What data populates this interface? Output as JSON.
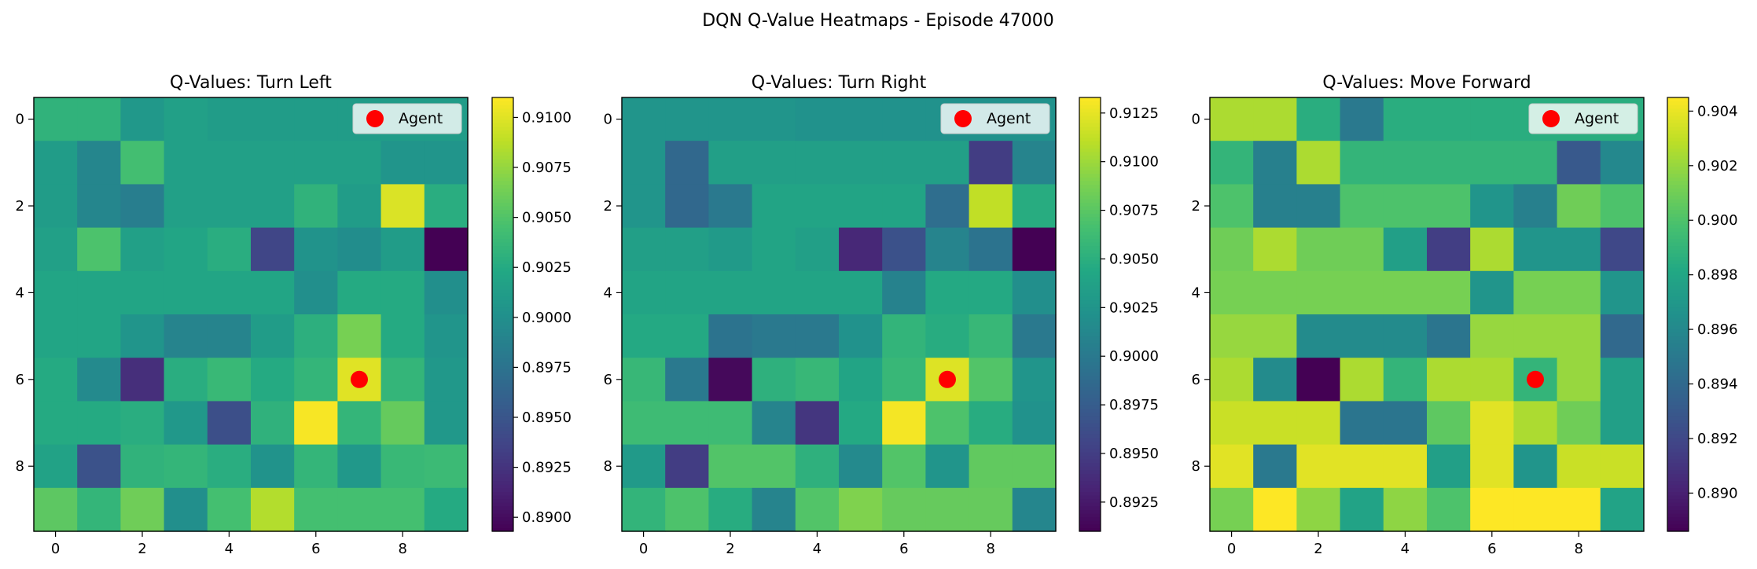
{
  "figure": {
    "suptitle": "DQN Q-Value Heatmaps - Episode 47000"
  },
  "colors": {
    "colormap": "viridis",
    "agent_marker": "#ff0000",
    "legend_bg": "#ffffff"
  },
  "chart_data": [
    {
      "type": "heatmap",
      "title": "Q-Values: Turn Left",
      "x": [
        0,
        1,
        2,
        3,
        4,
        5,
        6,
        7,
        8,
        9
      ],
      "y": [
        0,
        1,
        2,
        3,
        4,
        5,
        6,
        7,
        8,
        9
      ],
      "x_tick_labels": [
        "0",
        "2",
        "4",
        "6",
        "8"
      ],
      "y_tick_labels": [
        "0",
        "2",
        "4",
        "6",
        "8"
      ],
      "values": [
        [
          0.9033,
          0.9033,
          0.9008,
          0.9016,
          0.9012,
          0.9012,
          0.9012,
          0.9012,
          0.9012,
          0.9012
        ],
        [
          0.9012,
          0.8992,
          0.9044,
          0.9016,
          0.9016,
          0.9016,
          0.9016,
          0.9016,
          0.9005,
          0.9005
        ],
        [
          0.9012,
          0.8992,
          0.8985,
          0.9016,
          0.9016,
          0.9016,
          0.9033,
          0.9012,
          0.9098,
          0.9028
        ],
        [
          0.9016,
          0.9048,
          0.9016,
          0.902,
          0.9028,
          0.8938,
          0.9003,
          0.8998,
          0.9012,
          0.8892
        ],
        [
          0.902,
          0.902,
          0.902,
          0.902,
          0.902,
          0.902,
          0.9,
          0.9025,
          0.9025,
          0.9
        ],
        [
          0.902,
          0.902,
          0.9005,
          0.899,
          0.899,
          0.9012,
          0.903,
          0.9065,
          0.9025,
          0.9005
        ],
        [
          0.9025,
          0.8995,
          0.8922,
          0.9028,
          0.9038,
          0.9025,
          0.9035,
          0.91,
          0.9035,
          0.9008
        ],
        [
          0.9025,
          0.9025,
          0.9028,
          0.9008,
          0.8945,
          0.9032,
          0.9108,
          0.9035,
          0.9058,
          0.9008
        ],
        [
          0.9018,
          0.8948,
          0.9033,
          0.9035,
          0.9028,
          0.9003,
          0.9035,
          0.9008,
          0.9038,
          0.904
        ],
        [
          0.9055,
          0.9035,
          0.9062,
          0.9,
          0.9045,
          0.9085,
          0.9045,
          0.9045,
          0.9045,
          0.9025
        ]
      ],
      "vmin": 0.8893,
      "vmax": 0.911,
      "colorbar_ticks": [
        0.89,
        0.8925,
        0.895,
        0.8975,
        0.9,
        0.9025,
        0.905,
        0.9075,
        0.91
      ],
      "colorbar_tick_labels": [
        "0.8900",
        "0.8925",
        "0.8950",
        "0.8975",
        "0.9000",
        "0.9025",
        "0.9050",
        "0.9075",
        "0.9100"
      ],
      "agent": {
        "x": 7,
        "y": 6,
        "label": "Agent"
      },
      "legend_position": "top-right"
    },
    {
      "type": "heatmap",
      "title": "Q-Values: Turn Right",
      "x": [
        0,
        1,
        2,
        3,
        4,
        5,
        6,
        7,
        8,
        9
      ],
      "y": [
        0,
        1,
        2,
        3,
        4,
        5,
        6,
        7,
        8,
        9
      ],
      "x_tick_labels": [
        "0",
        "2",
        "4",
        "6",
        "8"
      ],
      "y_tick_labels": [
        "0",
        "2",
        "4",
        "6",
        "8"
      ],
      "values": [
        [
          0.9025,
          0.9025,
          0.9025,
          0.9025,
          0.9022,
          0.9022,
          0.9022,
          0.9022,
          0.9022,
          0.9022
        ],
        [
          0.9025,
          0.8985,
          0.9035,
          0.9035,
          0.9035,
          0.9035,
          0.9035,
          0.9035,
          0.895,
          0.901
        ],
        [
          0.9025,
          0.8985,
          0.9,
          0.904,
          0.904,
          0.904,
          0.904,
          0.899,
          0.9112,
          0.9048
        ],
        [
          0.9035,
          0.9035,
          0.903,
          0.904,
          0.9035,
          0.8935,
          0.8965,
          0.901,
          0.8995,
          0.891
        ],
        [
          0.904,
          0.904,
          0.904,
          0.904,
          0.904,
          0.904,
          0.9008,
          0.9045,
          0.9045,
          0.902
        ],
        [
          0.9045,
          0.9045,
          0.8995,
          0.9,
          0.9,
          0.9022,
          0.9055,
          0.9048,
          0.9058,
          0.9
        ],
        [
          0.9058,
          0.9,
          0.8915,
          0.9052,
          0.9058,
          0.904,
          0.9058,
          0.9122,
          0.9072,
          0.9025
        ],
        [
          0.9062,
          0.9062,
          0.9062,
          0.901,
          0.8945,
          0.9045,
          0.913,
          0.907,
          0.9048,
          0.9022
        ],
        [
          0.903,
          0.895,
          0.9072,
          0.9072,
          0.9052,
          0.9015,
          0.9072,
          0.9025,
          0.9078,
          0.9078
        ],
        [
          0.9055,
          0.907,
          0.9048,
          0.901,
          0.9072,
          0.909,
          0.908,
          0.908,
          0.908,
          0.9012
        ]
      ],
      "vmin": 0.891,
      "vmax": 0.9133,
      "colorbar_ticks": [
        0.8925,
        0.895,
        0.8975,
        0.9,
        0.9025,
        0.905,
        0.9075,
        0.91,
        0.9125
      ],
      "colorbar_tick_labels": [
        "0.8925",
        "0.8950",
        "0.8975",
        "0.9000",
        "0.9025",
        "0.9050",
        "0.9075",
        "0.9100",
        "0.9125"
      ],
      "agent": {
        "x": 7,
        "y": 6,
        "label": "Agent"
      },
      "legend_position": "top-right"
    },
    {
      "type": "heatmap",
      "title": "Q-Values: Move Forward",
      "x": [
        0,
        1,
        2,
        3,
        4,
        5,
        6,
        7,
        8,
        9
      ],
      "y": [
        0,
        1,
        2,
        3,
        4,
        5,
        6,
        7,
        8,
        9
      ],
      "x_tick_labels": [
        "0",
        "2",
        "4",
        "6",
        "8"
      ],
      "y_tick_labels": [
        "0",
        "2",
        "4",
        "6",
        "8"
      ],
      "values": [
        [
          0.9025,
          0.9025,
          0.8985,
          0.895,
          0.8985,
          0.8985,
          0.8985,
          0.8985,
          0.8985,
          0.8985
        ],
        [
          0.899,
          0.8955,
          0.9025,
          0.899,
          0.899,
          0.899,
          0.899,
          0.899,
          0.893,
          0.896
        ],
        [
          0.9,
          0.8955,
          0.8955,
          0.9,
          0.9,
          0.9,
          0.8968,
          0.8955,
          0.901,
          0.9
        ],
        [
          0.901,
          0.9025,
          0.901,
          0.901,
          0.8975,
          0.8915,
          0.9025,
          0.8968,
          0.8968,
          0.892
        ],
        [
          0.9012,
          0.9012,
          0.9012,
          0.9012,
          0.9012,
          0.9012,
          0.8968,
          0.9012,
          0.9012,
          0.8968
        ],
        [
          0.902,
          0.902,
          0.8962,
          0.8962,
          0.8962,
          0.8948,
          0.902,
          0.902,
          0.902,
          0.894
        ],
        [
          0.9025,
          0.8962,
          0.8886,
          0.9025,
          0.899,
          0.9025,
          0.9025,
          0.899,
          0.902,
          0.8975
        ],
        [
          0.9032,
          0.9032,
          0.9032,
          0.8948,
          0.8948,
          0.9005,
          0.9038,
          0.9025,
          0.901,
          0.8975
        ],
        [
          0.9038,
          0.895,
          0.9038,
          0.9038,
          0.9038,
          0.8975,
          0.9038,
          0.8968,
          0.9032,
          0.9032
        ],
        [
          0.9012,
          0.9045,
          0.9018,
          0.8978,
          0.9018,
          0.9,
          0.9045,
          0.9045,
          0.9045,
          0.8978
        ]
      ],
      "vmin": 0.8886,
      "vmax": 0.9045,
      "colorbar_ticks": [
        0.89,
        0.892,
        0.894,
        0.896,
        0.898,
        0.9,
        0.902,
        0.904
      ],
      "colorbar_tick_labels": [
        "0.890",
        "0.892",
        "0.894",
        "0.896",
        "0.898",
        "0.900",
        "0.902",
        "0.904"
      ],
      "agent": {
        "x": 7,
        "y": 6,
        "label": "Agent"
      },
      "legend_position": "top-right"
    }
  ]
}
